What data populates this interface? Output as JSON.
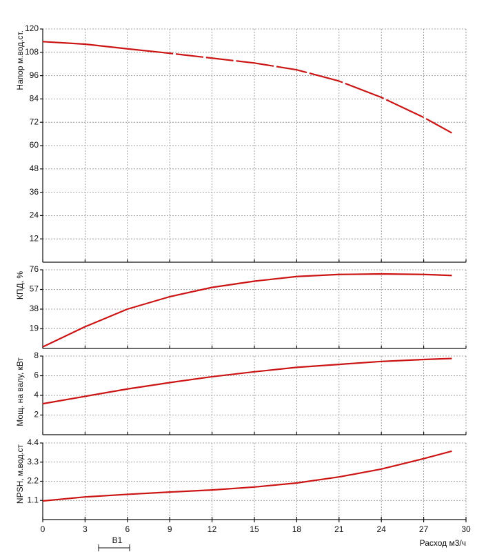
{
  "chart_data": [
    {
      "type": "line",
      "y_label": "Напор м.вод.ст.",
      "dashed": true,
      "x": [
        0,
        3,
        6,
        9,
        12,
        15,
        18,
        21,
        24,
        27,
        29
      ],
      "series": [
        {
          "color": "#cc1414",
          "values": [
            113.5,
            112.2,
            109.8,
            107.5,
            105,
            102.5,
            99,
            93.2,
            84.8,
            74.5,
            66.5
          ]
        }
      ],
      "ylim": [
        0,
        120
      ],
      "yticks": [
        12,
        24,
        36,
        48,
        60,
        72,
        84,
        96,
        108,
        120
      ],
      "grid": true
    },
    {
      "type": "line",
      "y_label": "КПД, %",
      "x": [
        0,
        3,
        6,
        9,
        12,
        15,
        18,
        21,
        24,
        27,
        29
      ],
      "series": [
        {
          "color": "#cc1414",
          "values": [
            1.5,
            21,
            38,
            50,
            59,
            65,
            69.5,
            71.5,
            72,
            71.5,
            70.5
          ]
        }
      ],
      "ylim": [
        0,
        76
      ],
      "yticks": [
        19,
        38,
        57,
        76
      ],
      "grid": true
    },
    {
      "type": "line",
      "y_label": "Мощ. на валу, кВт",
      "x": [
        0,
        3,
        6,
        9,
        12,
        15,
        18,
        21,
        24,
        27,
        29
      ],
      "series": [
        {
          "color": "#cc1414",
          "values": [
            3.15,
            3.9,
            4.65,
            5.3,
            5.9,
            6.4,
            6.85,
            7.15,
            7.45,
            7.65,
            7.75
          ]
        }
      ],
      "ylim": [
        0,
        8
      ],
      "yticks": [
        2,
        4,
        6,
        8
      ],
      "grid": true
    },
    {
      "type": "line",
      "y_label": "NPSH, м.вод.ст",
      "x_label": "Расход м3/ч",
      "annotation": "B1",
      "x": [
        0,
        3,
        6,
        9,
        12,
        15,
        18,
        21,
        24,
        27,
        29
      ],
      "series": [
        {
          "color": "#cc1414",
          "values": [
            1.07,
            1.3,
            1.45,
            1.58,
            1.7,
            1.87,
            2.1,
            2.45,
            2.9,
            3.5,
            3.93
          ]
        }
      ],
      "ylim": [
        0,
        4.4
      ],
      "yticks": [
        1.1,
        2.2,
        3.3,
        4.4
      ],
      "xlim": [
        0,
        30
      ],
      "xticks": [
        0,
        3,
        6,
        9,
        12,
        15,
        18,
        21,
        24,
        27,
        30
      ],
      "grid": true
    }
  ]
}
